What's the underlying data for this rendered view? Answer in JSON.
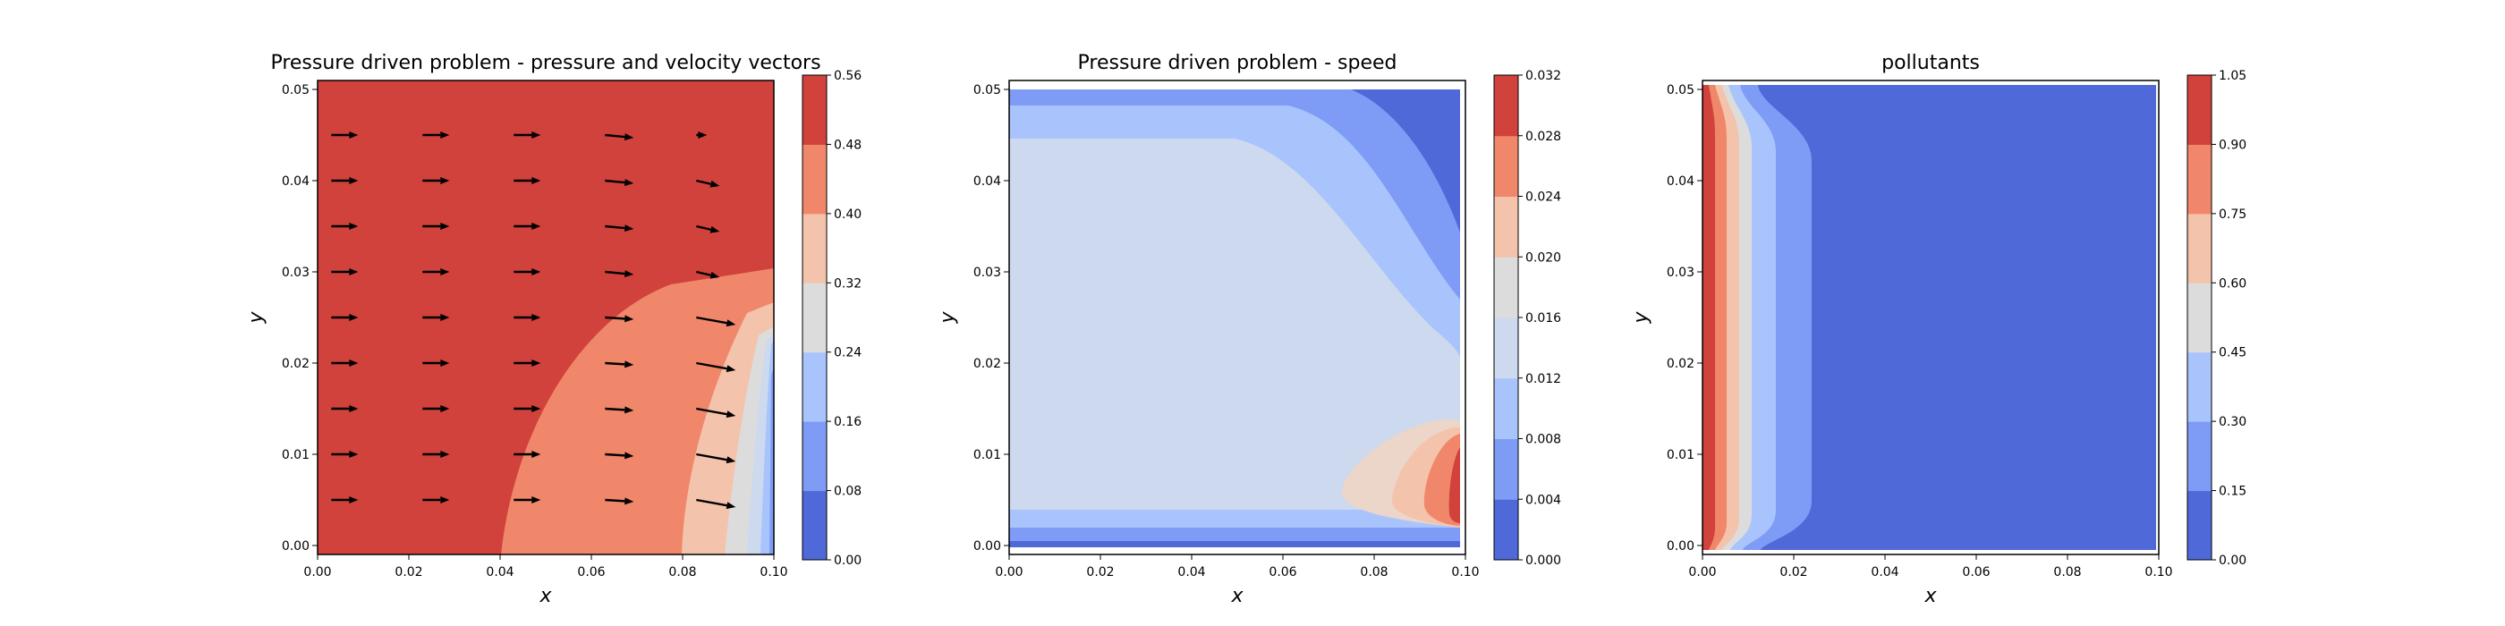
{
  "chart_data": [
    {
      "type": "contour",
      "title": "Pressure driven problem - pressure and velocity vectors",
      "xlabel": "x",
      "ylabel": "y",
      "xlim": [
        0,
        0.1
      ],
      "ylim": [
        0,
        0.05
      ],
      "xticks": [
        "0.00",
        "0.02",
        "0.04",
        "0.06",
        "0.08",
        "0.10"
      ],
      "yticks": [
        "0.00",
        "0.01",
        "0.02",
        "0.03",
        "0.04",
        "0.05"
      ],
      "colormap": "coolwarm",
      "colorbar": {
        "ticks": [
          "0.00",
          "0.08",
          "0.16",
          "0.24",
          "0.32",
          "0.40",
          "0.48",
          "0.56"
        ],
        "levels": [
          0,
          0.08,
          0.16,
          0.24,
          0.32,
          0.4,
          0.48,
          0.56
        ]
      },
      "quiver": {
        "x": [
          0.003,
          0.023,
          0.043,
          0.063,
          0.083
        ],
        "y": [
          0.005,
          0.01,
          0.015,
          0.02,
          0.025,
          0.03,
          0.035,
          0.04,
          0.045
        ],
        "arrow_color": "#000000"
      }
    },
    {
      "type": "contour",
      "title": "Pressure driven problem - speed",
      "xlabel": "x",
      "ylabel": "y",
      "xlim": [
        0,
        0.1
      ],
      "ylim": [
        0,
        0.05
      ],
      "xticks": [
        "0.00",
        "0.02",
        "0.04",
        "0.06",
        "0.08",
        "0.10"
      ],
      "yticks": [
        "0.00",
        "0.01",
        "0.02",
        "0.03",
        "0.04",
        "0.05"
      ],
      "colormap": "coolwarm",
      "colorbar": {
        "ticks": [
          "0.000",
          "0.004",
          "0.008",
          "0.012",
          "0.016",
          "0.020",
          "0.024",
          "0.028",
          "0.032"
        ],
        "levels": [
          0,
          0.004,
          0.008,
          0.012,
          0.016,
          0.02,
          0.024,
          0.028,
          0.032
        ]
      }
    },
    {
      "type": "contour",
      "title": "pollutants",
      "xlabel": "x",
      "ylabel": "y",
      "xlim": [
        0,
        0.1
      ],
      "ylim": [
        0,
        0.05
      ],
      "xticks": [
        "0.00",
        "0.02",
        "0.04",
        "0.06",
        "0.08",
        "0.10"
      ],
      "yticks": [
        "0.00",
        "0.01",
        "0.02",
        "0.03",
        "0.04",
        "0.05"
      ],
      "colormap": "coolwarm",
      "colorbar": {
        "ticks": [
          "0.00",
          "0.15",
          "0.30",
          "0.45",
          "0.60",
          "0.75",
          "0.90",
          "1.05"
        ],
        "levels": [
          0,
          0.15,
          0.3,
          0.45,
          0.6,
          0.75,
          0.9,
          1.05
        ]
      }
    }
  ],
  "colors": {
    "c0": "#4f6ad8",
    "c1": "#7e9cf5",
    "c2": "#a9c4fd",
    "c3": "#ccd9ee",
    "c4": "#dcdcdc",
    "c5": "#f4c3ab",
    "c6": "#f0876a",
    "c7": "#d0423b"
  }
}
